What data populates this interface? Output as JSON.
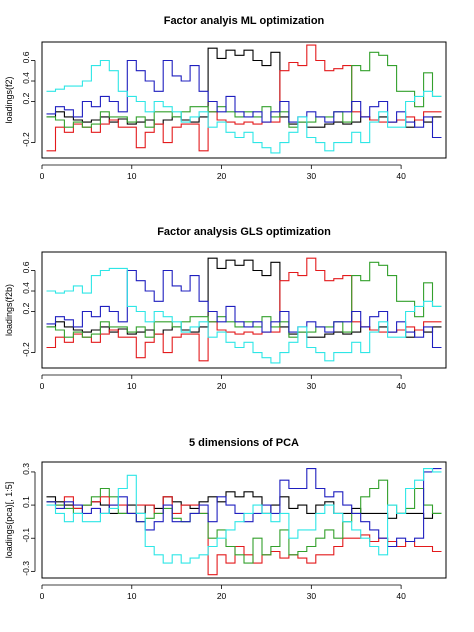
{
  "colors": {
    "black": "#000000",
    "red": "#e31a1c",
    "green": "#33a02c",
    "blue": "#1f1fbf",
    "cyan": "#2ee6e6"
  },
  "chart_data": [
    {
      "type": "line",
      "title": "Factor analyis ML optimization",
      "xlabel": "",
      "ylabel": "loadings(f2)",
      "xlim": [
        0,
        45
      ],
      "ylim": [
        -0.35,
        0.78
      ],
      "x_ticks": [
        0,
        10,
        20,
        30,
        40
      ],
      "x_tick_labels": [
        "0",
        "10",
        "20",
        "30",
        "40"
      ],
      "y_ticks": [
        -0.2,
        0.2,
        0.4,
        0.6
      ],
      "y_tick_labels": [
        "-0.2",
        "0.2",
        "0.4",
        "0.6"
      ],
      "step": "center",
      "x": [
        1,
        2,
        3,
        4,
        5,
        6,
        7,
        8,
        9,
        10,
        11,
        12,
        13,
        14,
        15,
        16,
        17,
        18,
        19,
        20,
        21,
        22,
        23,
        24,
        25,
        26,
        27,
        28,
        29,
        30,
        31,
        32,
        33,
        34,
        35,
        36,
        37,
        38,
        39,
        40,
        41,
        42,
        43,
        44
      ],
      "series": [
        {
          "color": "black",
          "values": [
            0.05,
            0.1,
            0.05,
            0.02,
            0.0,
            0.02,
            0.05,
            0.0,
            0.03,
            -0.02,
            0.0,
            0.02,
            -0.02,
            0.02,
            0.05,
            0.02,
            0.0,
            0.05,
            0.72,
            0.62,
            0.7,
            0.65,
            0.7,
            0.6,
            0.55,
            0.68,
            0.05,
            -0.02,
            0.0,
            -0.05,
            -0.05,
            -0.02,
            0.0,
            -0.02,
            0.0,
            0.05,
            0.02,
            0.05,
            0.0,
            0.02,
            -0.05,
            0.02,
            0.0,
            0.05
          ]
        },
        {
          "color": "red",
          "values": [
            -0.28,
            -0.05,
            -0.1,
            -0.02,
            -0.05,
            -0.1,
            -0.02,
            0.02,
            -0.05,
            -0.05,
            -0.25,
            -0.1,
            -0.02,
            -0.2,
            -0.05,
            -0.02,
            -0.02,
            -0.28,
            0.1,
            0.02,
            0.0,
            -0.02,
            0.0,
            -0.02,
            0.0,
            0.0,
            0.5,
            0.58,
            0.55,
            0.75,
            0.6,
            0.5,
            0.52,
            0.55,
            0.1,
            0.05,
            0.02,
            0.0,
            0.0,
            0.02,
            0.05,
            0.02,
            0.1,
            0.1
          ]
        },
        {
          "color": "green",
          "values": [
            0.05,
            0.02,
            -0.05,
            0.0,
            -0.05,
            -0.02,
            0.1,
            0.05,
            0.05,
            0.0,
            0.05,
            -0.05,
            0.1,
            0.1,
            0.05,
            0.1,
            0.15,
            0.15,
            0.1,
            0.15,
            0.1,
            0.05,
            0.1,
            0.05,
            0.15,
            0.05,
            0.1,
            -0.05,
            0.0,
            0.0,
            0.05,
            0.05,
            0.1,
            0.0,
            0.55,
            0.5,
            0.68,
            0.65,
            0.55,
            0.3,
            0.3,
            0.15,
            0.48,
            0.25
          ]
        },
        {
          "color": "blue",
          "values": [
            0.08,
            0.15,
            0.12,
            0.05,
            0.2,
            0.15,
            0.25,
            0.2,
            0.1,
            0.6,
            0.5,
            0.4,
            0.3,
            0.6,
            0.45,
            0.4,
            0.55,
            0.3,
            0.2,
            0.1,
            0.25,
            0.1,
            0.05,
            0.1,
            0.0,
            0.1,
            0.2,
            0.0,
            0.05,
            0.1,
            0.05,
            0.0,
            0.1,
            0.1,
            0.2,
            0.05,
            0.15,
            0.2,
            0.0,
            0.1,
            0.0,
            -0.05,
            0.05,
            -0.15
          ]
        },
        {
          "color": "cyan",
          "values": [
            0.3,
            0.32,
            0.35,
            0.35,
            0.4,
            0.55,
            0.6,
            0.5,
            0.3,
            0.25,
            0.2,
            0.1,
            0.2,
            0.15,
            0.1,
            0.0,
            0.05,
            0.1,
            -0.05,
            0.0,
            -0.1,
            -0.15,
            -0.1,
            -0.2,
            -0.25,
            -0.3,
            -0.2,
            -0.1,
            0.05,
            -0.15,
            -0.2,
            -0.28,
            -0.2,
            -0.2,
            -0.1,
            -0.2,
            0.0,
            0.1,
            -0.05,
            -0.05,
            0.2,
            0.25,
            0.3,
            0.25
          ]
        }
      ]
    },
    {
      "type": "line",
      "title": "Factor analysis GLS optimization",
      "xlabel": "",
      "ylabel": "loadings(f2b)",
      "xlim": [
        0,
        45
      ],
      "ylim": [
        -0.35,
        0.78
      ],
      "x_ticks": [
        0,
        10,
        20,
        30,
        40
      ],
      "x_tick_labels": [
        "0",
        "10",
        "20",
        "30",
        "40"
      ],
      "y_ticks": [
        -0.2,
        0.2,
        0.4,
        0.6
      ],
      "y_tick_labels": [
        "-0.2",
        "0.2",
        "0.4",
        "0.6"
      ],
      "step": "center",
      "x": [
        1,
        2,
        3,
        4,
        5,
        6,
        7,
        8,
        9,
        10,
        11,
        12,
        13,
        14,
        15,
        16,
        17,
        18,
        19,
        20,
        21,
        22,
        23,
        24,
        25,
        26,
        27,
        28,
        29,
        30,
        31,
        32,
        33,
        34,
        35,
        36,
        37,
        38,
        39,
        40,
        41,
        42,
        43,
        44
      ],
      "series": [
        {
          "color": "black",
          "values": [
            0.05,
            0.1,
            0.05,
            0.02,
            0.0,
            0.02,
            0.05,
            0.0,
            0.03,
            -0.02,
            0.0,
            0.02,
            -0.02,
            0.02,
            0.05,
            0.02,
            0.0,
            0.05,
            0.72,
            0.62,
            0.7,
            0.65,
            0.7,
            0.6,
            0.55,
            0.68,
            0.05,
            -0.02,
            0.0,
            -0.05,
            -0.05,
            -0.02,
            0.0,
            -0.02,
            0.0,
            0.05,
            0.02,
            0.05,
            0.0,
            0.02,
            -0.05,
            0.02,
            0.0,
            0.05
          ]
        },
        {
          "color": "red",
          "values": [
            -0.15,
            -0.05,
            -0.1,
            -0.02,
            -0.05,
            -0.1,
            -0.02,
            0.02,
            -0.05,
            -0.05,
            -0.25,
            -0.1,
            -0.02,
            -0.2,
            -0.05,
            -0.02,
            -0.02,
            -0.28,
            0.1,
            0.02,
            0.0,
            -0.02,
            0.0,
            -0.02,
            0.0,
            0.0,
            0.5,
            0.58,
            0.55,
            0.72,
            0.6,
            0.5,
            0.52,
            0.55,
            0.1,
            0.05,
            0.02,
            0.0,
            0.0,
            0.02,
            0.05,
            0.02,
            0.1,
            0.1
          ]
        },
        {
          "color": "green",
          "values": [
            0.05,
            0.02,
            -0.05,
            0.0,
            -0.05,
            -0.02,
            0.1,
            0.05,
            0.05,
            0.0,
            0.05,
            -0.05,
            0.1,
            0.1,
            0.05,
            0.1,
            0.15,
            0.15,
            0.1,
            0.15,
            0.1,
            0.05,
            0.1,
            0.05,
            0.15,
            0.05,
            0.1,
            -0.05,
            0.0,
            0.0,
            0.05,
            0.05,
            0.1,
            0.0,
            0.55,
            0.5,
            0.68,
            0.65,
            0.55,
            0.3,
            0.3,
            0.15,
            0.48,
            0.25
          ]
        },
        {
          "color": "blue",
          "values": [
            0.08,
            0.15,
            0.12,
            0.05,
            0.2,
            0.15,
            0.25,
            0.2,
            0.1,
            0.6,
            0.5,
            0.4,
            0.3,
            0.6,
            0.45,
            0.4,
            0.55,
            0.3,
            0.2,
            0.1,
            0.25,
            0.1,
            0.05,
            0.1,
            0.0,
            0.1,
            0.2,
            0.0,
            0.05,
            0.1,
            0.05,
            0.0,
            0.1,
            0.1,
            0.2,
            0.05,
            0.15,
            0.2,
            0.0,
            0.1,
            0.0,
            -0.05,
            0.05,
            -0.15
          ]
        },
        {
          "color": "cyan",
          "values": [
            0.4,
            0.38,
            0.4,
            0.45,
            0.38,
            0.55,
            0.6,
            0.62,
            0.62,
            0.25,
            0.2,
            0.1,
            0.2,
            0.15,
            0.1,
            0.0,
            0.05,
            0.1,
            -0.05,
            0.0,
            -0.1,
            -0.15,
            -0.1,
            -0.2,
            -0.25,
            -0.3,
            -0.2,
            -0.1,
            0.05,
            -0.15,
            -0.2,
            -0.28,
            -0.2,
            -0.2,
            -0.1,
            -0.2,
            0.0,
            0.1,
            -0.05,
            -0.05,
            0.2,
            0.25,
            0.3,
            0.25
          ]
        }
      ]
    },
    {
      "type": "line",
      "title": "5 dimensions of PCA",
      "xlabel": "",
      "ylabel": "loadings(pca)[, 1:5]",
      "xlim": [
        0,
        45
      ],
      "ylim": [
        -0.34,
        0.36
      ],
      "x_ticks": [
        0,
        10,
        20,
        30,
        40
      ],
      "x_tick_labels": [
        "0",
        "10",
        "20",
        "30",
        "40"
      ],
      "y_ticks": [
        -0.3,
        -0.1,
        0.1,
        0.3
      ],
      "y_tick_labels": [
        "-0.3",
        "-0.1",
        "0.1",
        "0.3"
      ],
      "step": "center",
      "x": [
        1,
        2,
        3,
        4,
        5,
        6,
        7,
        8,
        9,
        10,
        11,
        12,
        13,
        14,
        15,
        16,
        17,
        18,
        19,
        20,
        21,
        22,
        23,
        24,
        25,
        26,
        27,
        28,
        29,
        30,
        31,
        32,
        33,
        34,
        35,
        36,
        37,
        38,
        39,
        40,
        41,
        42,
        43,
        44
      ],
      "series": [
        {
          "color": "black",
          "values": [
            0.15,
            0.12,
            0.1,
            0.08,
            0.1,
            0.12,
            0.1,
            0.05,
            0.05,
            0.1,
            0.05,
            0.1,
            0.08,
            0.15,
            0.12,
            0.1,
            0.08,
            0.12,
            0.15,
            0.12,
            0.18,
            0.15,
            0.18,
            0.15,
            0.05,
            0.1,
            0.15,
            0.08,
            0.1,
            0.05,
            0.1,
            0.12,
            0.05,
            0.05,
            0.08,
            0.05,
            0.05,
            0.05,
            0.02,
            0.05,
            0.05,
            0.05,
            0.02,
            0.05
          ]
        },
        {
          "color": "red",
          "values": [
            0.12,
            0.1,
            0.15,
            0.08,
            0.1,
            0.12,
            0.15,
            0.1,
            0.1,
            0.05,
            0.1,
            0.1,
            0.05,
            0.15,
            0.05,
            0.1,
            0.1,
            0.05,
            -0.32,
            -0.2,
            -0.25,
            -0.15,
            -0.2,
            -0.25,
            -0.2,
            -0.18,
            -0.22,
            -0.2,
            -0.22,
            -0.25,
            -0.2,
            -0.2,
            -0.15,
            -0.1,
            -0.1,
            -0.08,
            -0.12,
            -0.1,
            -0.12,
            -0.15,
            -0.12,
            -0.15,
            -0.15,
            -0.18
          ]
        },
        {
          "color": "green",
          "values": [
            0.12,
            0.1,
            0.08,
            0.05,
            0.1,
            0.15,
            0.2,
            0.15,
            0.05,
            0.05,
            0.0,
            0.02,
            0.05,
            0.08,
            0.02,
            0.0,
            0.05,
            0.05,
            -0.1,
            -0.05,
            -0.15,
            -0.2,
            -0.25,
            -0.1,
            -0.2,
            -0.15,
            -0.05,
            -0.2,
            -0.18,
            -0.15,
            -0.1,
            -0.05,
            -0.1,
            0.0,
            0.05,
            0.15,
            0.2,
            0.25,
            0.1,
            0.05,
            0.08,
            0.2,
            0.1,
            0.05
          ]
        },
        {
          "color": "blue",
          "values": [
            0.12,
            0.08,
            0.12,
            0.1,
            0.05,
            0.08,
            0.05,
            0.1,
            0.15,
            0.05,
            0.0,
            -0.05,
            0.0,
            0.1,
            0.0,
            0.0,
            0.05,
            0.1,
            0.0,
            0.15,
            0.1,
            0.05,
            0.0,
            0.05,
            0.1,
            0.05,
            0.25,
            0.2,
            0.2,
            0.32,
            0.2,
            0.15,
            0.18,
            0.1,
            0.05,
            0.0,
            -0.05,
            -0.1,
            -0.15,
            -0.1,
            -0.12,
            -0.1,
            0.3,
            0.32
          ]
        },
        {
          "color": "cyan",
          "values": [
            0.1,
            0.05,
            0.0,
            0.05,
            0.0,
            0.0,
            0.05,
            0.08,
            0.2,
            0.28,
            0.05,
            -0.15,
            -0.2,
            -0.25,
            -0.2,
            -0.25,
            -0.22,
            -0.2,
            -0.15,
            -0.1,
            -0.05,
            0.0,
            0.05,
            0.1,
            0.05,
            0.0,
            0.05,
            -0.1,
            -0.05,
            -0.05,
            0.05,
            0.1,
            0.05,
            0.0,
            -0.05,
            -0.1,
            -0.15,
            -0.2,
            0.1,
            0.05,
            0.2,
            0.25,
            0.32,
            0.3
          ]
        }
      ]
    }
  ]
}
